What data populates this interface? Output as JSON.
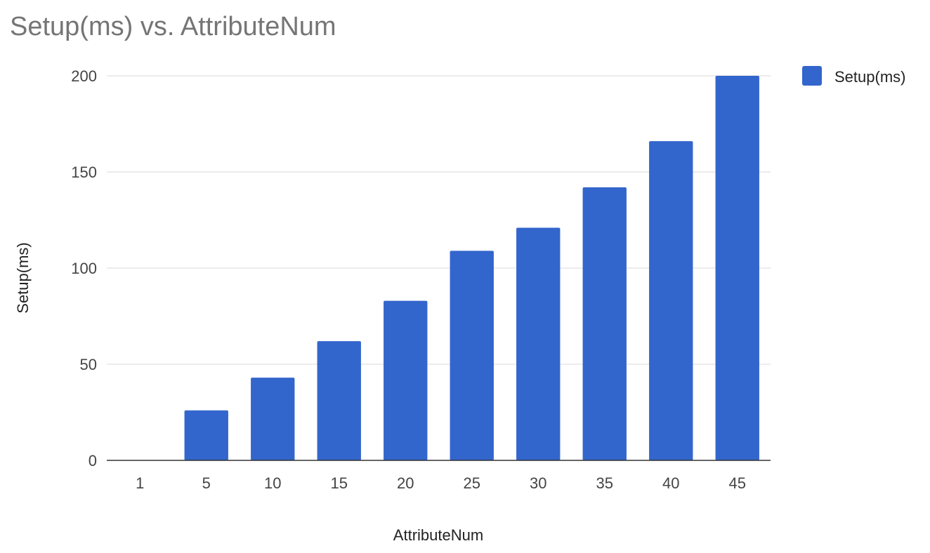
{
  "chart_data": {
    "type": "bar",
    "title": "Setup(ms) vs. AttributeNum",
    "xlabel": "AttributeNum",
    "ylabel": "Setup(ms)",
    "categories": [
      "1",
      "5",
      "10",
      "15",
      "20",
      "25",
      "30",
      "35",
      "40",
      "45"
    ],
    "series": [
      {
        "name": "Setup(ms)",
        "values": [
          0,
          26,
          43,
          62,
          83,
          109,
          121,
          142,
          166,
          200
        ],
        "color": "#3366cc"
      }
    ],
    "ylim": [
      0,
      200
    ],
    "yticks": [
      0,
      50,
      100,
      150,
      200
    ],
    "grid": true,
    "legend_position": "top-right"
  }
}
